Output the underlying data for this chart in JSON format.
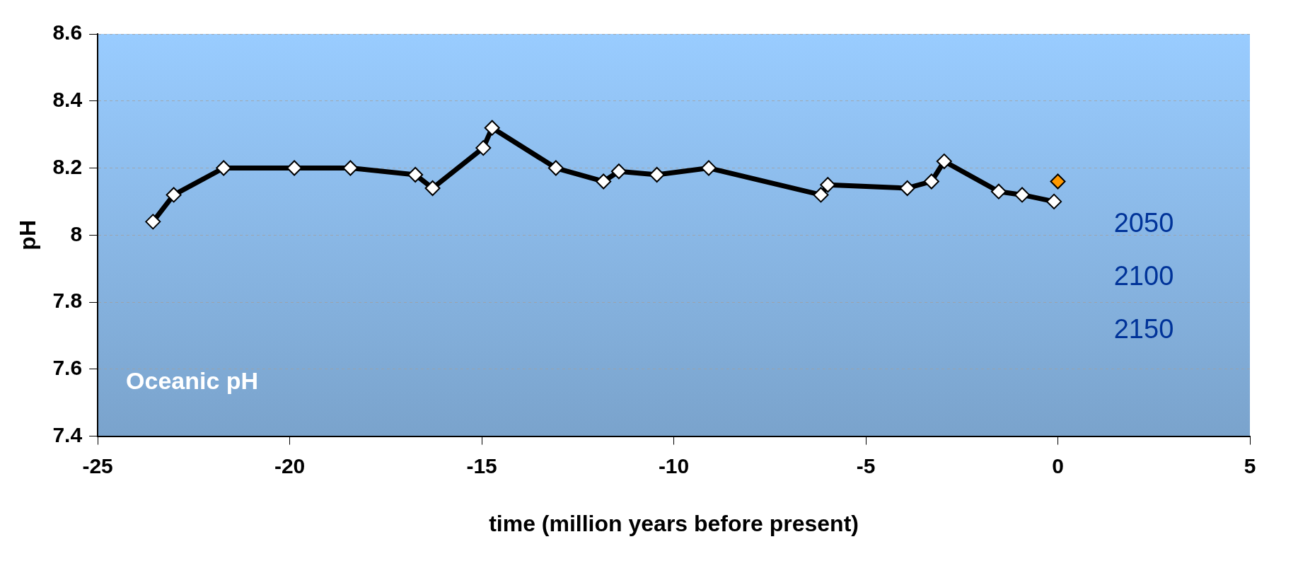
{
  "chart_data": {
    "type": "line",
    "xlabel": "time (million years before present)",
    "ylabel": "pH",
    "xlim": [
      -25,
      5
    ],
    "xticks": [
      -25,
      -20,
      -15,
      -10,
      -5,
      0,
      5
    ],
    "ylim": [
      7.4,
      8.6
    ],
    "yticks": [
      7.4,
      7.6,
      7.8,
      8,
      8.2,
      8.4,
      8.6
    ],
    "grid": "y",
    "legend": false,
    "marker": "diamond",
    "line_style": "solid",
    "series": [
      {
        "color": "#000000",
        "x": [
          -23.56,
          -23.02,
          -21.72,
          -19.88,
          -18.42,
          -16.73,
          -16.28,
          -14.96,
          -14.73,
          -13.07,
          -11.83,
          -11.43,
          -10.44,
          -9.09,
          -6.17,
          -5.99,
          -3.92,
          -3.29,
          -2.96,
          -1.54,
          -0.93,
          -0.1
        ],
        "values": [
          8.04,
          8.12,
          8.2,
          8.2,
          8.2,
          8.18,
          8.14,
          8.26,
          8.32,
          8.2,
          8.16,
          8.19,
          8.18,
          8.2,
          8.12,
          8.15,
          8.14,
          8.16,
          8.22,
          8.13,
          8.12,
          8.1
        ]
      },
      {
        "type": "scatter",
        "color": "#ff9900",
        "x": [
          0
        ],
        "values": [
          8.16
        ]
      }
    ],
    "annotations": [
      "Oceanic pH",
      "2050",
      "2100",
      "2150"
    ]
  }
}
